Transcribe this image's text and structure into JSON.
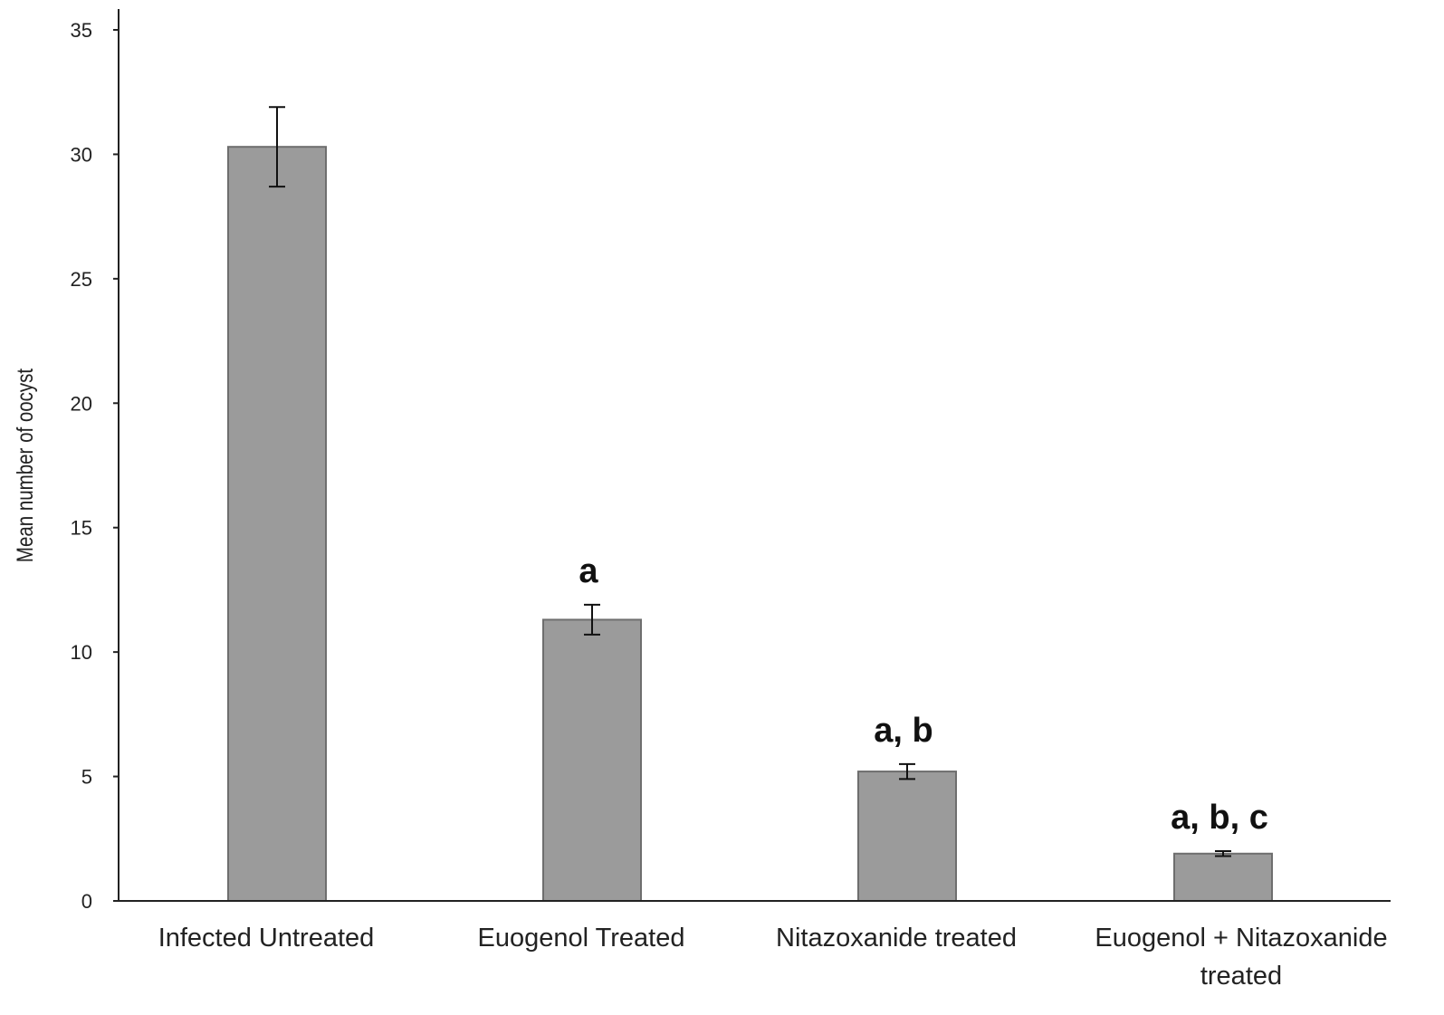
{
  "chart_data": {
    "type": "bar",
    "title": "",
    "xlabel": "",
    "ylabel": "Mean number of oocyst",
    "ylim": [
      0,
      35
    ],
    "yticks": [
      0,
      5,
      10,
      15,
      20,
      25,
      30,
      35
    ],
    "grid": false,
    "legend": "none",
    "categories": [
      [
        "Infected Untreated"
      ],
      [
        "Euogenol Treated"
      ],
      [
        "Nitazoxanide treated"
      ],
      [
        "Euogenol + Nitazoxanide",
        "treated"
      ]
    ],
    "values": [
      30.3,
      11.3,
      5.2,
      1.9
    ],
    "error": [
      1.6,
      0.6,
      0.3,
      0.1
    ],
    "annotations": [
      "",
      "a",
      "a, b",
      "a, b, c"
    ],
    "colors": {
      "bar_fill": "#9b9b9b",
      "bar_stroke": "#6e6e6e",
      "axis": "#222222"
    }
  }
}
